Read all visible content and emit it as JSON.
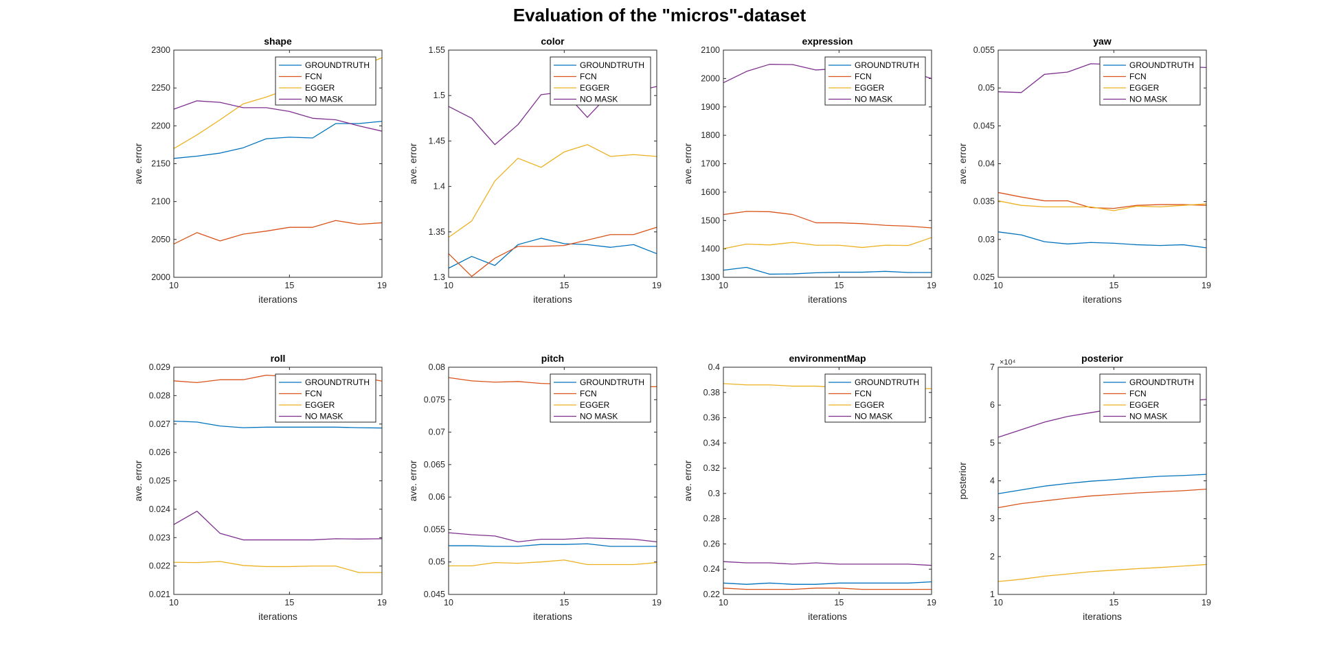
{
  "figure": {
    "title": "Evaluation of the \"micros\"-dataset"
  },
  "colors": {
    "GROUNDTRUTH": "#0072BD",
    "FCN": "#D95319",
    "EGGER": "#EDB120",
    "NO MASK": "#7E2F8E"
  },
  "legend_entries": [
    "GROUNDTRUTH",
    "FCN",
    "EGGER",
    "NO MASK"
  ],
  "chart_data": [
    {
      "type": "line",
      "title": "shape",
      "xlabel": "iterations",
      "ylabel": "ave. error",
      "x": [
        10,
        11,
        12,
        13,
        14,
        15,
        16,
        17,
        18,
        19
      ],
      "xlim": [
        10,
        19
      ],
      "ylim": [
        2000,
        2300
      ],
      "xticks": [
        10,
        15,
        19
      ],
      "yticks": [
        2000,
        2050,
        2100,
        2150,
        2200,
        2250,
        2300
      ],
      "ytick_labels": [
        "2000",
        "2050",
        "2100",
        "2150",
        "2200",
        "2250",
        "2300"
      ],
      "legend": "top-right",
      "series": [
        {
          "name": "GROUNDTRUTH",
          "values": [
            2157,
            2160,
            2164,
            2171,
            2183,
            2185,
            2184,
            2203,
            2203,
            2206
          ]
        },
        {
          "name": "FCN",
          "values": [
            2044,
            2059,
            2048,
            2057,
            2061,
            2066,
            2066,
            2075,
            2070,
            2072
          ]
        },
        {
          "name": "EGGER",
          "values": [
            2170,
            2188,
            2208,
            2229,
            2238,
            2249,
            2258,
            2268,
            2277,
            2290
          ]
        },
        {
          "name": "NO MASK",
          "values": [
            2222,
            2233,
            2231,
            2224,
            2224,
            2219,
            2210,
            2208,
            2200,
            2193
          ]
        }
      ]
    },
    {
      "type": "line",
      "title": "color",
      "xlabel": "iterations",
      "ylabel": "ave. error",
      "x": [
        10,
        11,
        12,
        13,
        14,
        15,
        16,
        17,
        18,
        19
      ],
      "xlim": [
        10,
        19
      ],
      "ylim": [
        1.3,
        1.55
      ],
      "xticks": [
        10,
        15,
        19
      ],
      "yticks": [
        1.3,
        1.35,
        1.4,
        1.45,
        1.5,
        1.55
      ],
      "ytick_labels": [
        "1.3",
        "1.35",
        "1.4",
        "1.45",
        "1.5",
        "1.55"
      ],
      "legend": "top-right",
      "series": [
        {
          "name": "GROUNDTRUTH",
          "values": [
            1.31,
            1.323,
            1.313,
            1.336,
            1.343,
            1.337,
            1.336,
            1.333,
            1.336,
            1.326
          ]
        },
        {
          "name": "FCN",
          "values": [
            1.326,
            1.301,
            1.321,
            1.334,
            1.334,
            1.335,
            1.341,
            1.347,
            1.347,
            1.355
          ]
        },
        {
          "name": "EGGER",
          "values": [
            1.344,
            1.362,
            1.406,
            1.431,
            1.421,
            1.438,
            1.446,
            1.433,
            1.435,
            1.433
          ]
        },
        {
          "name": "NO MASK",
          "values": [
            1.488,
            1.475,
            1.446,
            1.468,
            1.501,
            1.504,
            1.476,
            1.503,
            1.504,
            1.51
          ]
        }
      ]
    },
    {
      "type": "line",
      "title": "expression",
      "xlabel": "iterations",
      "ylabel": "ave. error",
      "x": [
        10,
        11,
        12,
        13,
        14,
        15,
        16,
        17,
        18,
        19
      ],
      "xlim": [
        10,
        19
      ],
      "ylim": [
        1300,
        2100
      ],
      "xticks": [
        10,
        15,
        19
      ],
      "yticks": [
        1300,
        1400,
        1500,
        1600,
        1700,
        1800,
        1900,
        2000,
        2100
      ],
      "ytick_labels": [
        "1300",
        "1400",
        "1500",
        "1600",
        "1700",
        "1800",
        "1900",
        "2000",
        "2100"
      ],
      "legend": "top-right",
      "series": [
        {
          "name": "GROUNDTRUTH",
          "values": [
            1325,
            1335,
            1311,
            1312,
            1316,
            1318,
            1318,
            1321,
            1317,
            1317
          ]
        },
        {
          "name": "FCN",
          "values": [
            1521,
            1532,
            1531,
            1521,
            1492,
            1492,
            1489,
            1483,
            1480,
            1474
          ]
        },
        {
          "name": "EGGER",
          "values": [
            1401,
            1417,
            1414,
            1423,
            1413,
            1413,
            1405,
            1413,
            1412,
            1440
          ]
        },
        {
          "name": "NO MASK",
          "values": [
            1985,
            2025,
            2050,
            2049,
            2030,
            2035,
            2040,
            2040,
            2025,
            2000
          ]
        }
      ]
    },
    {
      "type": "line",
      "title": "yaw",
      "xlabel": "iterations",
      "ylabel": "ave. error",
      "x": [
        10,
        11,
        12,
        13,
        14,
        15,
        16,
        17,
        18,
        19
      ],
      "xlim": [
        10,
        19
      ],
      "ylim": [
        0.025,
        0.055
      ],
      "xticks": [
        10,
        15,
        19
      ],
      "yticks": [
        0.025,
        0.03,
        0.035,
        0.04,
        0.045,
        0.05,
        0.055
      ],
      "ytick_labels": [
        "0.025",
        "0.03",
        "0.035",
        "0.04",
        "0.045",
        "0.05",
        "0.055"
      ],
      "legend": "top-right",
      "series": [
        {
          "name": "GROUNDTRUTH",
          "values": [
            0.031,
            0.0306,
            0.0297,
            0.0294,
            0.0296,
            0.0295,
            0.0293,
            0.0292,
            0.0293,
            0.0289
          ]
        },
        {
          "name": "FCN",
          "values": [
            0.0362,
            0.0356,
            0.0351,
            0.0351,
            0.0342,
            0.0341,
            0.0345,
            0.0346,
            0.0346,
            0.0345
          ]
        },
        {
          "name": "EGGER",
          "values": [
            0.0351,
            0.0345,
            0.0343,
            0.0343,
            0.0343,
            0.0338,
            0.0344,
            0.0343,
            0.0345,
            0.0347
          ]
        },
        {
          "name": "NO MASK",
          "values": [
            0.0495,
            0.0494,
            0.0518,
            0.0521,
            0.0532,
            0.0531,
            0.053,
            0.0529,
            0.0528,
            0.0527
          ]
        }
      ]
    },
    {
      "type": "line",
      "title": "roll",
      "xlabel": "iterations",
      "ylabel": "ave. error",
      "x": [
        10,
        11,
        12,
        13,
        14,
        15,
        16,
        17,
        18,
        19
      ],
      "xlim": [
        10,
        19
      ],
      "ylim": [
        0.021,
        0.029
      ],
      "xticks": [
        10,
        15,
        19
      ],
      "yticks": [
        0.021,
        0.022,
        0.023,
        0.024,
        0.025,
        0.026,
        0.027,
        0.028,
        0.029
      ],
      "ytick_labels": [
        "0.021",
        "0.022",
        "0.023",
        "0.024",
        "0.025",
        "0.026",
        "0.027",
        "0.028",
        "0.029"
      ],
      "legend": "top-right",
      "series": [
        {
          "name": "GROUNDTRUTH",
          "values": [
            0.0271,
            0.02707,
            0.02693,
            0.02687,
            0.02689,
            0.02689,
            0.02689,
            0.02689,
            0.02687,
            0.02686
          ]
        },
        {
          "name": "FCN",
          "values": [
            0.02852,
            0.02846,
            0.02856,
            0.02856,
            0.02872,
            0.02867,
            0.02869,
            0.02862,
            0.02866,
            0.02851
          ]
        },
        {
          "name": "EGGER",
          "values": [
            0.02213,
            0.02212,
            0.02216,
            0.02202,
            0.02198,
            0.02198,
            0.022,
            0.022,
            0.02177,
            0.02177
          ]
        },
        {
          "name": "NO MASK",
          "values": [
            0.02346,
            0.02393,
            0.02315,
            0.02292,
            0.02292,
            0.02292,
            0.02292,
            0.02296,
            0.02295,
            0.02296
          ]
        }
      ]
    },
    {
      "type": "line",
      "title": "pitch",
      "xlabel": "iterations",
      "ylabel": "ave. error",
      "x": [
        10,
        11,
        12,
        13,
        14,
        15,
        16,
        17,
        18,
        19
      ],
      "xlim": [
        10,
        19
      ],
      "ylim": [
        0.045,
        0.08
      ],
      "xticks": [
        10,
        15,
        19
      ],
      "yticks": [
        0.045,
        0.05,
        0.055,
        0.06,
        0.065,
        0.07,
        0.075,
        0.08
      ],
      "ytick_labels": [
        "0.045",
        "0.05",
        "0.055",
        "0.06",
        "0.065",
        "0.07",
        "0.075",
        "0.08"
      ],
      "legend": "top-right",
      "series": [
        {
          "name": "GROUNDTRUTH",
          "values": [
            0.0525,
            0.0525,
            0.0524,
            0.0524,
            0.0527,
            0.0527,
            0.0528,
            0.0524,
            0.0524,
            0.0524
          ]
        },
        {
          "name": "FCN",
          "values": [
            0.0784,
            0.0779,
            0.0777,
            0.0778,
            0.0775,
            0.0774,
            0.0772,
            0.0772,
            0.077,
            0.077
          ]
        },
        {
          "name": "EGGER",
          "values": [
            0.0494,
            0.0494,
            0.0499,
            0.0498,
            0.05,
            0.0503,
            0.0496,
            0.0496,
            0.0496,
            0.0499
          ]
        },
        {
          "name": "NO MASK",
          "values": [
            0.0545,
            0.0542,
            0.054,
            0.0531,
            0.0535,
            0.0535,
            0.0537,
            0.0536,
            0.0535,
            0.0531
          ]
        }
      ]
    },
    {
      "type": "line",
      "title": "environmentMap",
      "xlabel": "iterations",
      "ylabel": "ave. error",
      "x": [
        10,
        11,
        12,
        13,
        14,
        15,
        16,
        17,
        18,
        19
      ],
      "xlim": [
        10,
        19
      ],
      "ylim": [
        0.22,
        0.4
      ],
      "xticks": [
        10,
        15,
        19
      ],
      "yticks": [
        0.22,
        0.24,
        0.26,
        0.28,
        0.3,
        0.32,
        0.34,
        0.36,
        0.38,
        0.4
      ],
      "ytick_labels": [
        "0.22",
        "0.24",
        "0.26",
        "0.28",
        "0.3",
        "0.32",
        "0.34",
        "0.36",
        "0.38",
        "0.4"
      ],
      "legend": "top-right",
      "series": [
        {
          "name": "GROUNDTRUTH",
          "values": [
            0.229,
            0.228,
            0.229,
            0.228,
            0.228,
            0.229,
            0.229,
            0.229,
            0.229,
            0.23
          ]
        },
        {
          "name": "FCN",
          "values": [
            0.225,
            0.224,
            0.224,
            0.224,
            0.225,
            0.225,
            0.224,
            0.224,
            0.224,
            0.224
          ]
        },
        {
          "name": "EGGER",
          "values": [
            0.387,
            0.386,
            0.386,
            0.385,
            0.385,
            0.384,
            0.384,
            0.384,
            0.383,
            0.383
          ]
        },
        {
          "name": "NO MASK",
          "values": [
            0.246,
            0.245,
            0.245,
            0.244,
            0.245,
            0.244,
            0.244,
            0.244,
            0.244,
            0.243
          ]
        }
      ]
    },
    {
      "type": "line",
      "title": "posterior",
      "xlabel": "iterations",
      "ylabel": "posterior",
      "x": [
        10,
        11,
        12,
        13,
        14,
        15,
        16,
        17,
        18,
        19
      ],
      "xlim": [
        10,
        19
      ],
      "ylim": [
        10000,
        70000
      ],
      "xticks": [
        10,
        15,
        19
      ],
      "yticks": [
        10000,
        20000,
        30000,
        40000,
        50000,
        60000,
        70000
      ],
      "ytick_labels": [
        "1",
        "2",
        "3",
        "4",
        "5",
        "6",
        "7"
      ],
      "y_exponent_label": "×10⁴",
      "legend": "top-right",
      "series": [
        {
          "name": "GROUNDTRUTH",
          "values": [
            36600,
            37600,
            38600,
            39300,
            39900,
            40300,
            40800,
            41200,
            41400,
            41700
          ]
        },
        {
          "name": "FCN",
          "values": [
            32900,
            34000,
            34700,
            35400,
            36000,
            36400,
            36800,
            37100,
            37400,
            37800
          ]
        },
        {
          "name": "EGGER",
          "values": [
            13400,
            14000,
            14800,
            15400,
            16000,
            16400,
            16800,
            17100,
            17500,
            17900
          ]
        },
        {
          "name": "NO MASK",
          "values": [
            51500,
            53500,
            55500,
            57000,
            58000,
            59000,
            59800,
            60500,
            61000,
            61500
          ]
        }
      ]
    }
  ]
}
